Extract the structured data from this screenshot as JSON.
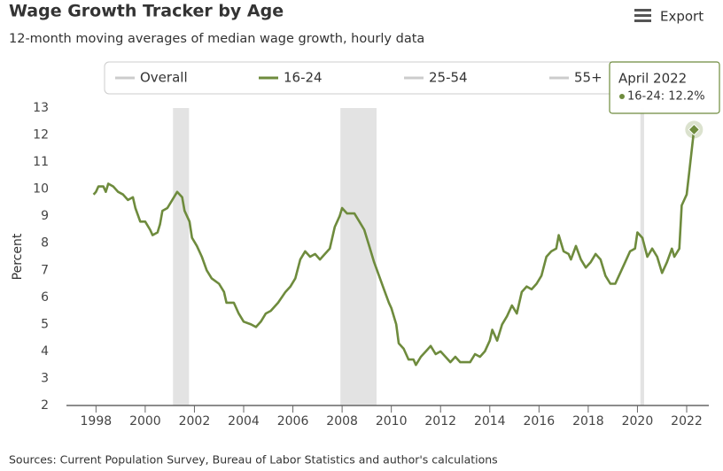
{
  "chart_data": {
    "type": "line",
    "title": "Wage Growth Tracker by Age",
    "subtitle": "12-month moving averages of median wage growth, hourly data",
    "y_label": "Percent",
    "source": "Sources: Current Population Survey, Bureau of Labor Statistics and author's calculations",
    "export_label": "Export",
    "legend": [
      {
        "name": "Overall",
        "visible": false
      },
      {
        "name": "16-24",
        "visible": true
      },
      {
        "name": "25-54",
        "visible": false
      },
      {
        "name": "55+",
        "visible": false
      }
    ],
    "hidden_color": "#cccccc",
    "x": [
      1997.9,
      1998.0,
      1998.1,
      1998.3,
      1998.4,
      1998.5,
      1998.7,
      1998.9,
      1999.1,
      1999.3,
      1999.5,
      1999.6,
      1999.8,
      2000.0,
      2000.2,
      2000.3,
      2000.5,
      2000.6,
      2000.7,
      2000.9,
      2001.1,
      2001.3,
      2001.5,
      2001.6,
      2001.8,
      2001.9,
      2002.1,
      2002.3,
      2002.5,
      2002.7,
      2003.0,
      2003.2,
      2003.3,
      2003.6,
      2003.8,
      2004.0,
      2004.3,
      2004.5,
      2004.7,
      2004.9,
      2005.1,
      2005.4,
      2005.7,
      2005.9,
      2006.1,
      2006.3,
      2006.5,
      2006.7,
      2006.9,
      2007.1,
      2007.3,
      2007.5,
      2007.7,
      2007.9,
      2008.0,
      2008.2,
      2008.5,
      2008.7,
      2008.9,
      2009.1,
      2009.3,
      2009.5,
      2009.7,
      2009.9,
      2010.0,
      2010.2,
      2010.3,
      2010.5,
      2010.7,
      2010.9,
      2011.0,
      2011.2,
      2011.4,
      2011.6,
      2011.8,
      2012.0,
      2012.2,
      2012.4,
      2012.6,
      2012.8,
      2013.0,
      2013.2,
      2013.4,
      2013.6,
      2013.8,
      2014.0,
      2014.1,
      2014.3,
      2014.5,
      2014.7,
      2014.9,
      2015.1,
      2015.3,
      2015.5,
      2015.7,
      2015.9,
      2016.1,
      2016.3,
      2016.5,
      2016.7,
      2016.8,
      2017.0,
      2017.2,
      2017.3,
      2017.5,
      2017.7,
      2017.9,
      2018.1,
      2018.3,
      2018.5,
      2018.7,
      2018.9,
      2019.1,
      2019.3,
      2019.5,
      2019.7,
      2019.9,
      2020.0,
      2020.2,
      2020.4,
      2020.6,
      2020.8,
      2021.0,
      2021.2,
      2021.4,
      2021.5,
      2021.7,
      2021.8,
      2022.0,
      2022.1,
      2022.3
    ],
    "series": [
      {
        "name": "16-24",
        "color": "#6e8b3d",
        "values": [
          9.8,
          9.9,
          10.1,
          10.1,
          9.9,
          10.2,
          10.1,
          9.9,
          9.8,
          9.6,
          9.7,
          9.3,
          8.8,
          8.8,
          8.5,
          8.3,
          8.4,
          8.7,
          9.2,
          9.3,
          9.6,
          9.9,
          9.7,
          9.2,
          8.8,
          8.2,
          7.9,
          7.5,
          7.0,
          6.7,
          6.5,
          6.2,
          5.8,
          5.8,
          5.4,
          5.1,
          5.0,
          4.9,
          5.1,
          5.4,
          5.5,
          5.8,
          6.2,
          6.4,
          6.7,
          7.4,
          7.7,
          7.5,
          7.6,
          7.4,
          7.6,
          7.8,
          8.6,
          9.0,
          9.3,
          9.1,
          9.1,
          8.8,
          8.5,
          7.9,
          7.3,
          6.8,
          6.3,
          5.8,
          5.6,
          5.0,
          4.3,
          4.1,
          3.7,
          3.7,
          3.5,
          3.8,
          4.0,
          4.2,
          3.9,
          4.0,
          3.8,
          3.6,
          3.8,
          3.6,
          3.6,
          3.6,
          3.9,
          3.8,
          4.0,
          4.4,
          4.8,
          4.4,
          5.0,
          5.3,
          5.7,
          5.4,
          6.2,
          6.4,
          6.3,
          6.5,
          6.8,
          7.5,
          7.7,
          7.8,
          8.3,
          7.7,
          7.6,
          7.4,
          7.9,
          7.4,
          7.1,
          7.3,
          7.6,
          7.4,
          6.8,
          6.5,
          6.5,
          6.9,
          7.3,
          7.7,
          7.8,
          8.4,
          8.2,
          7.5,
          7.8,
          7.5,
          6.9,
          7.3,
          7.8,
          7.5,
          7.8,
          9.4,
          9.8,
          10.6,
          12.2
        ]
      }
    ],
    "shaded_ranges": [
      [
        2001.13,
        2001.78
      ],
      [
        2007.93,
        2009.4
      ],
      [
        2020.12,
        2020.27
      ]
    ],
    "xlim": [
      1996.8,
      2022.9
    ],
    "xticks": [
      1998,
      2000,
      2002,
      2004,
      2006,
      2008,
      2010,
      2012,
      2014,
      2016,
      2018,
      2020,
      2022
    ],
    "ylim": [
      2,
      13
    ],
    "yticks": [
      2,
      3,
      4,
      5,
      6,
      7,
      8,
      9,
      10,
      11,
      12,
      13
    ],
    "grid": false,
    "tooltip": {
      "title": "April 2022",
      "text": "16-24: 12.2%"
    }
  }
}
